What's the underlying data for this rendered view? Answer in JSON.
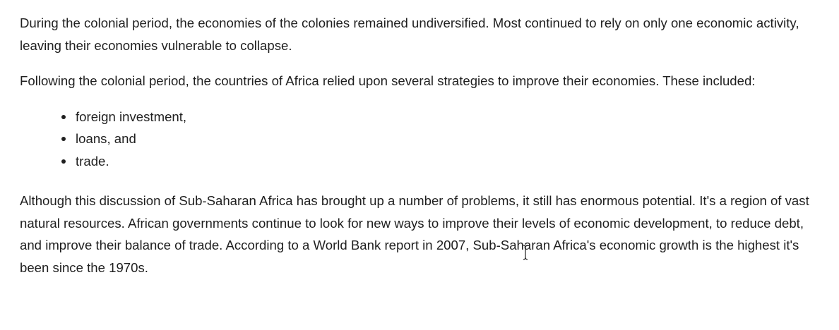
{
  "article": {
    "paragraphs": [
      "During the colonial period, the economies of the colonies remained undiversified. Most continued to rely on only one economic activity, leaving their economies vulnerable to collapse.",
      "Following the colonial period, the countries of Africa relied upon several strategies to improve their economies. These included:",
      "Although this discussion of Sub-Saharan Africa has brought up a number of problems, it still has enormous potential. It's a region of vast natural resources. African governments continue to look for new ways to improve their levels of economic development, to reduce debt, and improve their balance of trade. According to a World Bank report in 2007, Sub-Saharan Africa's economic growth is the highest it's been since the 1970s."
    ],
    "strategies": [
      "foreign investment,",
      "loans, and",
      "trade."
    ]
  },
  "icons": {
    "cursor": "i-beam-cursor-icon"
  }
}
